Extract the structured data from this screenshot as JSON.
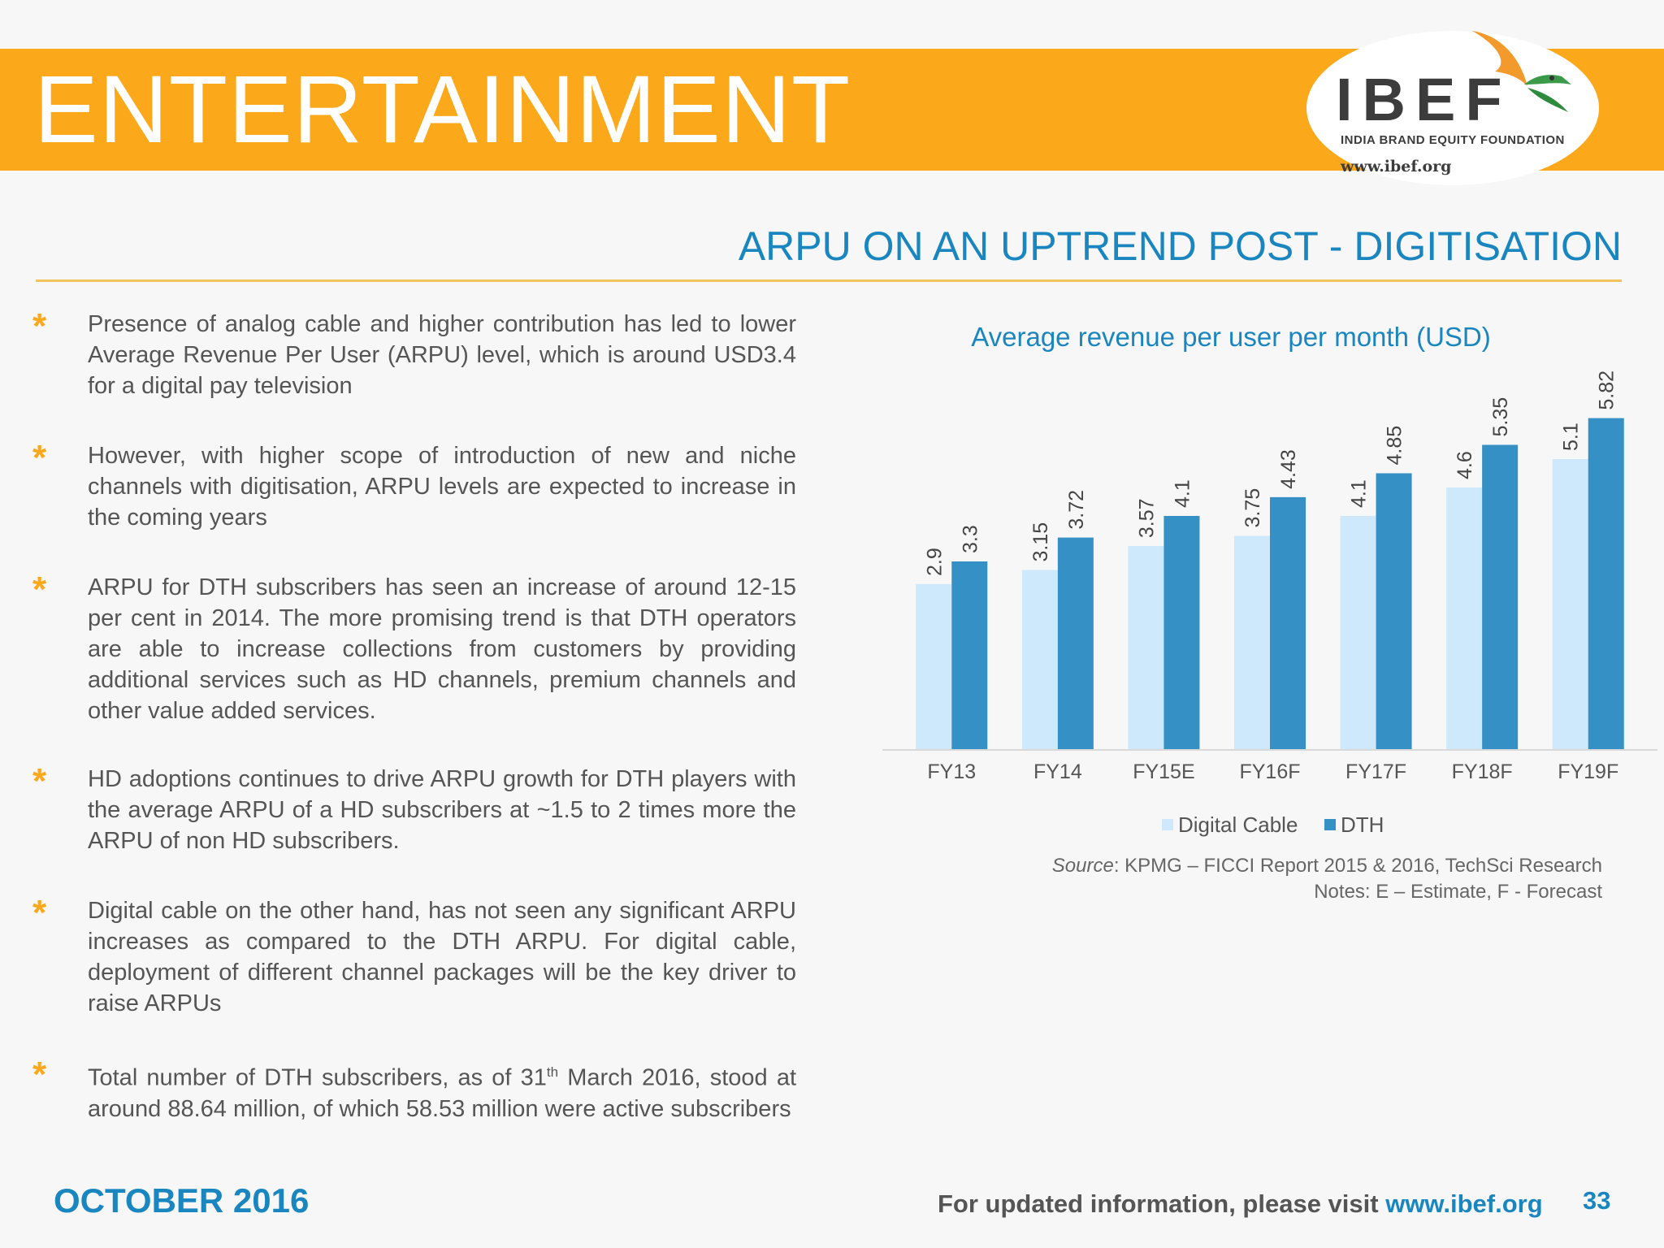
{
  "header": {
    "title": "ENTERTAINMENT",
    "logo": {
      "name": "IBEF",
      "tagline": "INDIA BRAND EQUITY FOUNDATION",
      "url": "www.ibef.org"
    }
  },
  "section_title": "ARPU ON AN UPTREND POST - DIGITISATION",
  "bullets": [
    {
      "text": "Presence of analog cable and higher contribution has led to lower Average Revenue Per User (ARPU) level, which is around USD3.4 for a digital pay television"
    },
    {
      "text": "However, with higher scope of introduction of new and niche channels with digitisation, ARPU levels are expected to increase in the coming years"
    },
    {
      "text": "ARPU for DTH subscribers has seen an increase of around 12-15 per cent in 2014. The more promising trend is that DTH operators are able to increase collections from customers by providing additional services such as HD channels, premium channels and other value added services."
    },
    {
      "text": "HD adoptions continues to drive ARPU growth for DTH players with the average ARPU of a HD subscribers at ~1.5 to 2 times more the ARPU of non HD subscribers."
    },
    {
      "text": "Digital cable on the other hand, has not seen any significant ARPU increases as compared to the DTH ARPU.  For digital cable, deployment of different channel packages will be the key driver to raise ARPUs"
    },
    {
      "pre": "Total number of DTH subscribers, as of 31",
      "sup": "th",
      "post": " March 2016, stood at around 88.64 million, of which 58.53 million were active subscribers"
    }
  ],
  "chart_data": {
    "type": "bar",
    "title": "Average revenue per user per month (USD)",
    "categories": [
      "FY13",
      "FY14",
      "FY15E",
      "FY16F",
      "FY17F",
      "FY18F",
      "FY19F"
    ],
    "series": [
      {
        "name": "Digital Cable",
        "color": "#cde9fb",
        "values": [
          2.9,
          3.15,
          3.57,
          3.75,
          4.1,
          4.6,
          5.1
        ]
      },
      {
        "name": "DTH",
        "color": "#3590c5",
        "values": [
          3.3,
          3.72,
          4.1,
          4.43,
          4.85,
          5.35,
          5.82
        ]
      }
    ],
    "ylim": [
      0,
      6.0
    ],
    "legend_position": "bottom",
    "grid": false,
    "xlabel": "",
    "ylabel": ""
  },
  "source_note": {
    "label": "Source",
    "text": ": KPMG – FICCI Report 2015 & 2016, TechSci Research",
    "notes": "Notes: E – Estimate, F - Forecast"
  },
  "footer": {
    "date": "OCTOBER 2016",
    "visit_text": "For updated information, please visit ",
    "visit_url": "www.ibef.org",
    "page_number": "33"
  },
  "colors": {
    "banner": "#fba91b",
    "accent_blue": "#1a86bf",
    "bullet_star": "#fba91b"
  }
}
